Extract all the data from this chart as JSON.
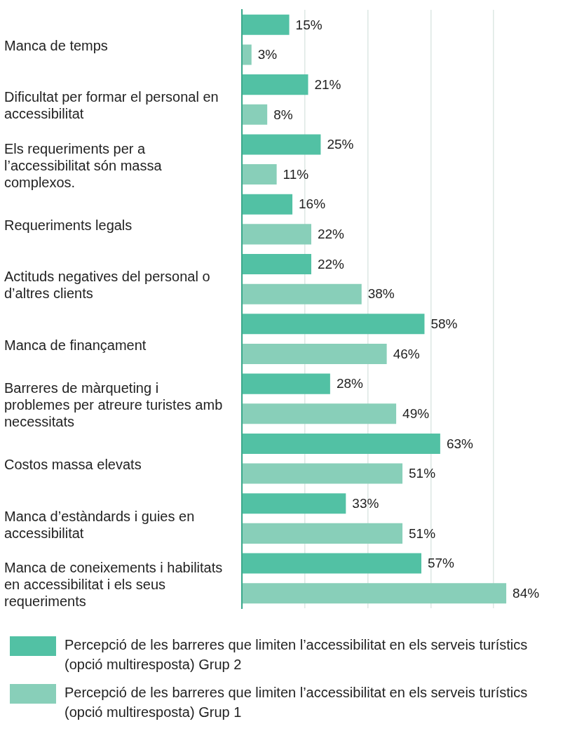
{
  "chart_data": {
    "type": "bar",
    "orientation": "horizontal",
    "categories": [
      "Manca de temps",
      "Dificultat per formar el personal en accessibilitat",
      "Els requeriments per a l’accessibilitat són massa complexos.",
      "Requeriments legals",
      "Actituds negatives del personal o d’altres clients",
      "Manca de finançament",
      "Barreres de màrqueting i problemes per atreure turistes amb necessitats",
      "Costos massa elevats",
      "Manca d’estàndards i guies en accessibilitat",
      "Manca de coneixements i habilitats en accessibilitat i els seus requeriments"
    ],
    "series": [
      {
        "name": "Percepció de les barreres que limiten l’accessibilitat en els serveis turístics (opció multiresposta) Grup 2",
        "color": "#52c1a4",
        "values": [
          15,
          21,
          25,
          16,
          22,
          58,
          28,
          63,
          33,
          57
        ],
        "value_labels": [
          "15%",
          "21%",
          "25%",
          "16%",
          "22%",
          "58%",
          "28%",
          "63%",
          "33%",
          "57%"
        ]
      },
      {
        "name": "Percepció de les barreres que limiten l’accessibilitat en els serveis turístics (opció multiresposta) Grup 1",
        "color": "#88cfb9",
        "values": [
          3,
          8,
          11,
          22,
          38,
          46,
          49,
          51,
          51,
          84
        ],
        "value_labels": [
          "3%",
          "8%",
          "11%",
          "22%",
          "38%",
          "46%",
          "49%",
          "51%",
          "51%",
          "84%"
        ]
      }
    ],
    "xticks": [
      {
        "value": 0,
        "label": null
      },
      {
        "value": 20,
        "label": null
      },
      {
        "value": 40,
        "label": null
      },
      {
        "value": 60,
        "label": null
      },
      {
        "value": 80,
        "label": null
      }
    ],
    "grid": "x",
    "tick_labels": "y",
    "legend": "bottom"
  }
}
